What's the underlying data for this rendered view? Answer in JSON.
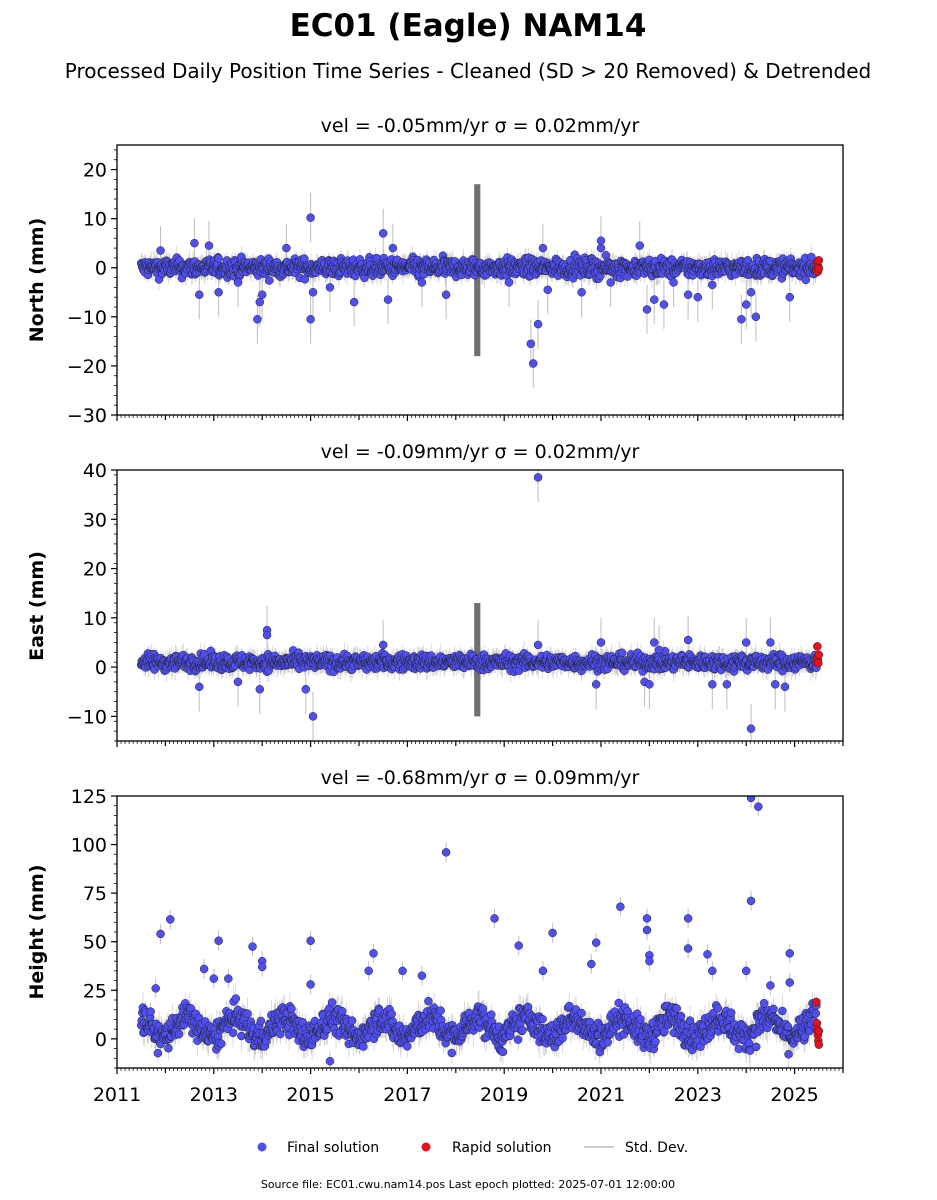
{
  "figure": {
    "title": "EC01 (Eagle) NAM14",
    "subtitle": "Processed Daily Position Time Series - Cleaned (SD > 20 Removed) & Detrended",
    "source_note": "Source file: EC01.cwu.nam14.pos  Last epoch plotted: 2025-07-01 12:00:00"
  },
  "legend": {
    "final_label": "Final solution",
    "rapid_label": "Rapid solution",
    "sd_label": "Std. Dev."
  },
  "colors": {
    "final": "#4f4ff5",
    "rapid": "#e8101a",
    "std_dev": "#bdbdbd",
    "edge": "#222222"
  },
  "chart_data": [
    {
      "type": "scatter",
      "panel": "north",
      "title": "vel = -0.05mm/yr   σ = 0.02mm/yr",
      "xlabel": "",
      "ylabel": "North (mm)",
      "xlim": [
        2011,
        2026
      ],
      "ylim": [
        -30,
        25
      ],
      "yticks": [
        -30,
        -20,
        -10,
        0,
        10,
        20
      ],
      "ytick_labels": [
        "−30",
        "−20",
        "−10",
        "0",
        "10",
        "20"
      ],
      "grid": false,
      "series": [
        {
          "name": "Final solution",
          "baseline": {
            "x_start": 2011.5,
            "x_end": 2025.45,
            "center": 0,
            "spread": 1.5,
            "sd": 1.8
          },
          "outliers": [
            {
              "x": 2011.9,
              "y": 3.5
            },
            {
              "x": 2012.6,
              "y": 5
            },
            {
              "x": 2012.7,
              "y": -5.5
            },
            {
              "x": 2012.9,
              "y": 4.5
            },
            {
              "x": 2013.1,
              "y": -5
            },
            {
              "x": 2013.5,
              "y": -3
            },
            {
              "x": 2013.9,
              "y": -10.5
            },
            {
              "x": 2013.95,
              "y": -7
            },
            {
              "x": 2014.0,
              "y": -5.5
            },
            {
              "x": 2014.5,
              "y": 4
            },
            {
              "x": 2015.0,
              "y": 10.2
            },
            {
              "x": 2015.0,
              "y": -10.5
            },
            {
              "x": 2015.05,
              "y": -5
            },
            {
              "x": 2015.4,
              "y": -4
            },
            {
              "x": 2015.9,
              "y": -7
            },
            {
              "x": 2016.5,
              "y": 7
            },
            {
              "x": 2016.6,
              "y": -6.5
            },
            {
              "x": 2016.7,
              "y": 4
            },
            {
              "x": 2017.3,
              "y": -3
            },
            {
              "x": 2017.8,
              "y": -5.5
            },
            {
              "x": 2019.1,
              "y": -3
            },
            {
              "x": 2019.55,
              "y": -15.5
            },
            {
              "x": 2019.6,
              "y": -19.5
            },
            {
              "x": 2019.7,
              "y": -11.5
            },
            {
              "x": 2019.8,
              "y": 4
            },
            {
              "x": 2019.9,
              "y": -4.5
            },
            {
              "x": 2020.6,
              "y": -5
            },
            {
              "x": 2021.0,
              "y": 5.5
            },
            {
              "x": 2021.0,
              "y": 4
            },
            {
              "x": 2021.2,
              "y": -3
            },
            {
              "x": 2021.8,
              "y": 4.5
            },
            {
              "x": 2021.95,
              "y": -8.5
            },
            {
              "x": 2022.1,
              "y": -6.5
            },
            {
              "x": 2022.3,
              "y": -7.5
            },
            {
              "x": 2022.5,
              "y": -3
            },
            {
              "x": 2022.8,
              "y": -5.5
            },
            {
              "x": 2023.0,
              "y": -6
            },
            {
              "x": 2023.3,
              "y": -3.5
            },
            {
              "x": 2023.9,
              "y": -10.5
            },
            {
              "x": 2024.0,
              "y": -7.5
            },
            {
              "x": 2024.2,
              "y": -10
            },
            {
              "x": 2024.1,
              "y": -5
            },
            {
              "x": 2024.9,
              "y": -6
            }
          ]
        },
        {
          "name": "Rapid solution",
          "points": [
            {
              "x": 2025.45,
              "y": -0.5
            },
            {
              "x": 2025.46,
              "y": 0.5
            },
            {
              "x": 2025.47,
              "y": 1.2
            },
            {
              "x": 2025.48,
              "y": -0.8
            },
            {
              "x": 2025.49,
              "y": 0.2
            },
            {
              "x": 2025.5,
              "y": 1.5
            },
            {
              "x": 2025.5,
              "y": -0.2
            }
          ]
        }
      ],
      "std_dev_spike": {
        "x": 2018.45,
        "y_low": -18,
        "y_high": 17
      }
    },
    {
      "type": "scatter",
      "panel": "east",
      "title": "vel = -0.09mm/yr   σ = 0.02mm/yr",
      "xlabel": "",
      "ylabel": "East (mm)",
      "xlim": [
        2011,
        2026
      ],
      "ylim": [
        -15,
        40
      ],
      "yticks": [
        -10,
        0,
        10,
        20,
        30,
        40
      ],
      "ytick_labels": [
        "−10",
        "0",
        "10",
        "20",
        "30",
        "40"
      ],
      "grid": false,
      "series": [
        {
          "name": "Final solution",
          "baseline": {
            "x_start": 2011.5,
            "x_end": 2025.45,
            "center": 1,
            "spread": 1.3,
            "sd": 1.8
          },
          "outliers": [
            {
              "x": 2012.7,
              "y": -4
            },
            {
              "x": 2013.5,
              "y": -3
            },
            {
              "x": 2013.95,
              "y": -4.5
            },
            {
              "x": 2014.1,
              "y": 7.5
            },
            {
              "x": 2014.1,
              "y": 6.5
            },
            {
              "x": 2014.9,
              "y": -4.5
            },
            {
              "x": 2015.05,
              "y": -10
            },
            {
              "x": 2016.5,
              "y": 4.5
            },
            {
              "x": 2019.7,
              "y": 38.5
            },
            {
              "x": 2019.7,
              "y": 4.5
            },
            {
              "x": 2020.9,
              "y": -3.5
            },
            {
              "x": 2021.0,
              "y": 5
            },
            {
              "x": 2021.9,
              "y": -3
            },
            {
              "x": 2022.0,
              "y": -3.5
            },
            {
              "x": 2022.1,
              "y": 5
            },
            {
              "x": 2022.2,
              "y": 3.5
            },
            {
              "x": 2022.8,
              "y": 5.5
            },
            {
              "x": 2023.3,
              "y": -3.5
            },
            {
              "x": 2023.6,
              "y": -3.5
            },
            {
              "x": 2024.0,
              "y": 5
            },
            {
              "x": 2024.1,
              "y": -12.5
            },
            {
              "x": 2024.5,
              "y": 5
            },
            {
              "x": 2024.6,
              "y": -3.5
            },
            {
              "x": 2024.8,
              "y": -4
            }
          ]
        },
        {
          "name": "Rapid solution",
          "points": [
            {
              "x": 2025.45,
              "y": 1
            },
            {
              "x": 2025.46,
              "y": 2
            },
            {
              "x": 2025.47,
              "y": 4.2
            },
            {
              "x": 2025.48,
              "y": 1.5
            },
            {
              "x": 2025.49,
              "y": 0.8
            },
            {
              "x": 2025.5,
              "y": 2.5
            }
          ]
        }
      ],
      "std_dev_spike": {
        "x": 2018.45,
        "y_low": -10,
        "y_high": 13
      }
    },
    {
      "type": "scatter",
      "panel": "height",
      "title": "vel = -0.68mm/yr   σ = 0.09mm/yr",
      "xlabel": "",
      "ylabel": "Height (mm)",
      "xlim": [
        2011,
        2026
      ],
      "ylim": [
        -15,
        125
      ],
      "yticks": [
        0,
        25,
        50,
        75,
        100,
        125
      ],
      "ytick_labels": [
        "0",
        "25",
        "50",
        "75",
        "100",
        "125"
      ],
      "xticks": [
        2011,
        2013,
        2015,
        2017,
        2019,
        2021,
        2023,
        2025
      ],
      "xtick_labels": [
        "2011",
        "2013",
        "2015",
        "2017",
        "2019",
        "2021",
        "2023",
        "2025"
      ],
      "grid": false,
      "series": [
        {
          "name": "Final solution",
          "baseline": {
            "x_start": 2011.5,
            "x_end": 2025.45,
            "center": 6,
            "spread": 6,
            "seasonal": 5,
            "sd": 6
          },
          "outliers": [
            {
              "x": 2011.8,
              "y": 26
            },
            {
              "x": 2011.9,
              "y": 54
            },
            {
              "x": 2012.1,
              "y": 61.5
            },
            {
              "x": 2012.8,
              "y": 36
            },
            {
              "x": 2013.0,
              "y": 31
            },
            {
              "x": 2013.1,
              "y": 50.5
            },
            {
              "x": 2013.3,
              "y": 31
            },
            {
              "x": 2013.8,
              "y": 47.5
            },
            {
              "x": 2014.0,
              "y": 40
            },
            {
              "x": 2014.0,
              "y": 37
            },
            {
              "x": 2015.0,
              "y": 50.5
            },
            {
              "x": 2015.0,
              "y": 28
            },
            {
              "x": 2015.4,
              "y": -11.5
            },
            {
              "x": 2016.2,
              "y": 35
            },
            {
              "x": 2016.3,
              "y": 44
            },
            {
              "x": 2016.9,
              "y": 35
            },
            {
              "x": 2017.3,
              "y": 32.5
            },
            {
              "x": 2017.8,
              "y": 96
            },
            {
              "x": 2018.8,
              "y": 62
            },
            {
              "x": 2019.3,
              "y": 48
            },
            {
              "x": 2019.8,
              "y": 35
            },
            {
              "x": 2020.0,
              "y": 54.5
            },
            {
              "x": 2020.8,
              "y": 38.5
            },
            {
              "x": 2020.9,
              "y": 49.5
            },
            {
              "x": 2021.4,
              "y": 68
            },
            {
              "x": 2021.95,
              "y": 62
            },
            {
              "x": 2021.95,
              "y": 56
            },
            {
              "x": 2022.0,
              "y": 43
            },
            {
              "x": 2022.0,
              "y": 40
            },
            {
              "x": 2022.8,
              "y": 62
            },
            {
              "x": 2022.8,
              "y": 46.5
            },
            {
              "x": 2023.2,
              "y": 43.5
            },
            {
              "x": 2023.3,
              "y": 35
            },
            {
              "x": 2024.0,
              "y": 35
            },
            {
              "x": 2024.1,
              "y": 124
            },
            {
              "x": 2024.1,
              "y": 71
            },
            {
              "x": 2024.25,
              "y": 119.5
            },
            {
              "x": 2024.5,
              "y": 27.5
            },
            {
              "x": 2024.9,
              "y": 44
            },
            {
              "x": 2024.9,
              "y": 29
            }
          ]
        },
        {
          "name": "Rapid solution",
          "points": [
            {
              "x": 2025.45,
              "y": 19
            },
            {
              "x": 2025.46,
              "y": 8
            },
            {
              "x": 2025.47,
              "y": 5
            },
            {
              "x": 2025.48,
              "y": 2
            },
            {
              "x": 2025.49,
              "y": -1
            },
            {
              "x": 2025.5,
              "y": -3
            },
            {
              "x": 2025.5,
              "y": 4
            }
          ]
        }
      ],
      "std_dev_spike": null
    }
  ]
}
